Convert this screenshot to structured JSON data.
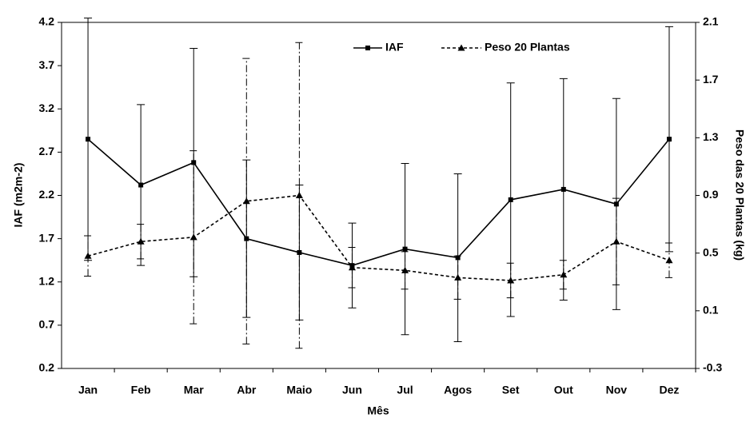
{
  "chart_data": {
    "type": "line",
    "x_label": "Mês",
    "y_label": "IAF (m2m-2)",
    "y2_label": "Peso das 20 Plantas (kg)",
    "categories": [
      "Jan",
      "Feb",
      "Mar",
      "Abr",
      "Maio",
      "Jun",
      "Jul",
      "Agos",
      "Set",
      "Out",
      "Nov",
      "Dez"
    ],
    "series": [
      {
        "name": "IAF",
        "color": "#000000",
        "axis": "y",
        "values": [
          2.85,
          2.32,
          2.58,
          1.7,
          1.54,
          1.39,
          1.58,
          1.48,
          2.15,
          2.27,
          2.1,
          2.85
        ],
        "errors": [
          1.4,
          0.93,
          1.32,
          0.91,
          0.78,
          0.49,
          0.99,
          0.97,
          1.35,
          1.28,
          1.22,
          1.3
        ]
      },
      {
        "name": "Peso 20 Plantas",
        "color": "#000000",
        "axis": "y2",
        "values": [
          0.48,
          0.58,
          0.61,
          0.86,
          0.9,
          0.4,
          0.38,
          0.33,
          0.31,
          0.35,
          0.58,
          0.45
        ],
        "errors": [
          0.14,
          0.12,
          0.6,
          0.99,
          1.06,
          0.14,
          0.13,
          0.15,
          0.12,
          0.1,
          0.3,
          0.12
        ]
      }
    ],
    "ylim": [
      0.2,
      4.2
    ],
    "yticks": [
      0.2,
      0.7,
      1.2,
      1.7,
      2.2,
      2.7,
      3.2,
      3.7,
      4.2
    ],
    "y2lim": [
      -0.3,
      2.1
    ],
    "y2ticks": [
      -0.3,
      0.1,
      0.5,
      0.9,
      1.3,
      1.7,
      2.1
    ],
    "grid": false,
    "legend": "top"
  }
}
